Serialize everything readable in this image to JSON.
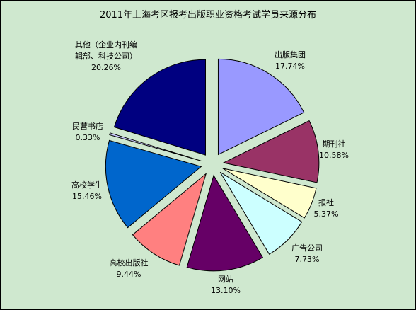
{
  "chart_data": {
    "type": "pie",
    "title": "2011年上海考区报考出版职业资格考试学员来源分布",
    "slices": [
      {
        "label": [
          "出版集团"
        ],
        "value_label": "17.74%",
        "value": 17.74,
        "color": "#9999ff"
      },
      {
        "label": [
          "期刊社"
        ],
        "value_label": "10.58%",
        "value": 10.58,
        "color": "#993366"
      },
      {
        "label": [
          "报社"
        ],
        "value_label": "5.37%",
        "value": 5.37,
        "color": "#ffffcc"
      },
      {
        "label": [
          "广告公司"
        ],
        "value_label": "7.73%",
        "value": 7.73,
        "color": "#ccffff"
      },
      {
        "label": [
          "网站"
        ],
        "value_label": "13.10%",
        "value": 13.1,
        "color": "#660066"
      },
      {
        "label": [
          "高校出版社"
        ],
        "value_label": "9.44%",
        "value": 9.44,
        "color": "#ff8080"
      },
      {
        "label": [
          "高校学生"
        ],
        "value_label": "15.46%",
        "value": 15.46,
        "color": "#0066cc"
      },
      {
        "label": [
          "民营书店"
        ],
        "value_label": "0.33%",
        "value": 0.33,
        "color": "#ccccff"
      },
      {
        "label": [
          "其他（企业内刊编",
          "辑部、科技公司）"
        ],
        "value_label": "20.26%",
        "value": 20.26,
        "color": "#000080"
      }
    ]
  }
}
